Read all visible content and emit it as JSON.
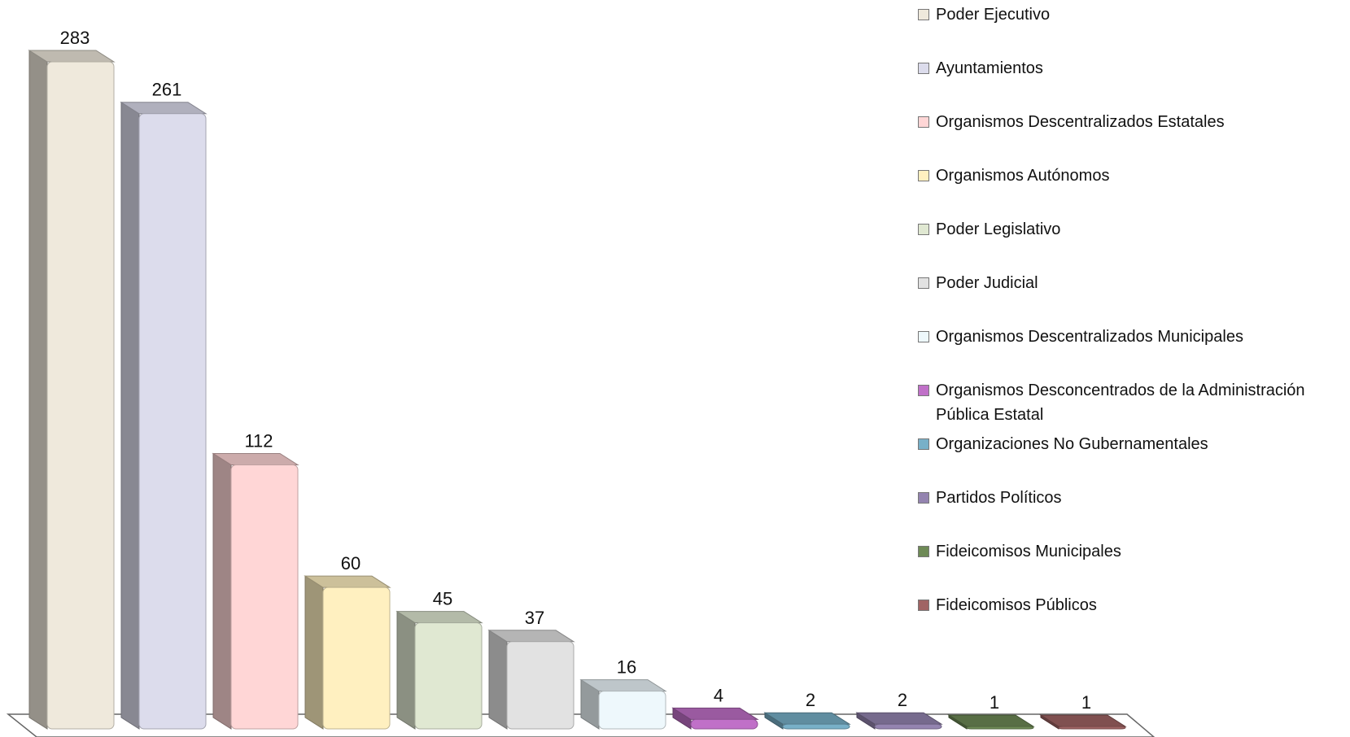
{
  "chart_data": {
    "type": "bar3d",
    "categories": [
      "Poder Ejecutivo",
      "Ayuntamientos",
      "Organismos Descentralizados Estatales",
      "Organismos Autónomos",
      "Poder Legislativo",
      "Poder Judicial",
      "Organismos Descentralizados Municipales",
      "Organismos Desconcentrados de la Administración Pública Estatal",
      "Organizaciones No Gubernamentales",
      "Partidos Políticos",
      "Fideicomisos Municipales",
      "Fideicomisos Públicos"
    ],
    "values": [
      283,
      261,
      112,
      60,
      45,
      37,
      16,
      4,
      2,
      2,
      1,
      1
    ],
    "colors": [
      "#efe9dc",
      "#dcdcec",
      "#ffd6d6",
      "#fff0c0",
      "#e0e8d2",
      "#e2e2e2",
      "#eef8fc",
      "#c070c8",
      "#78b0c8",
      "#9484b0",
      "#6e8a56",
      "#a06464"
    ],
    "legend": "right"
  }
}
